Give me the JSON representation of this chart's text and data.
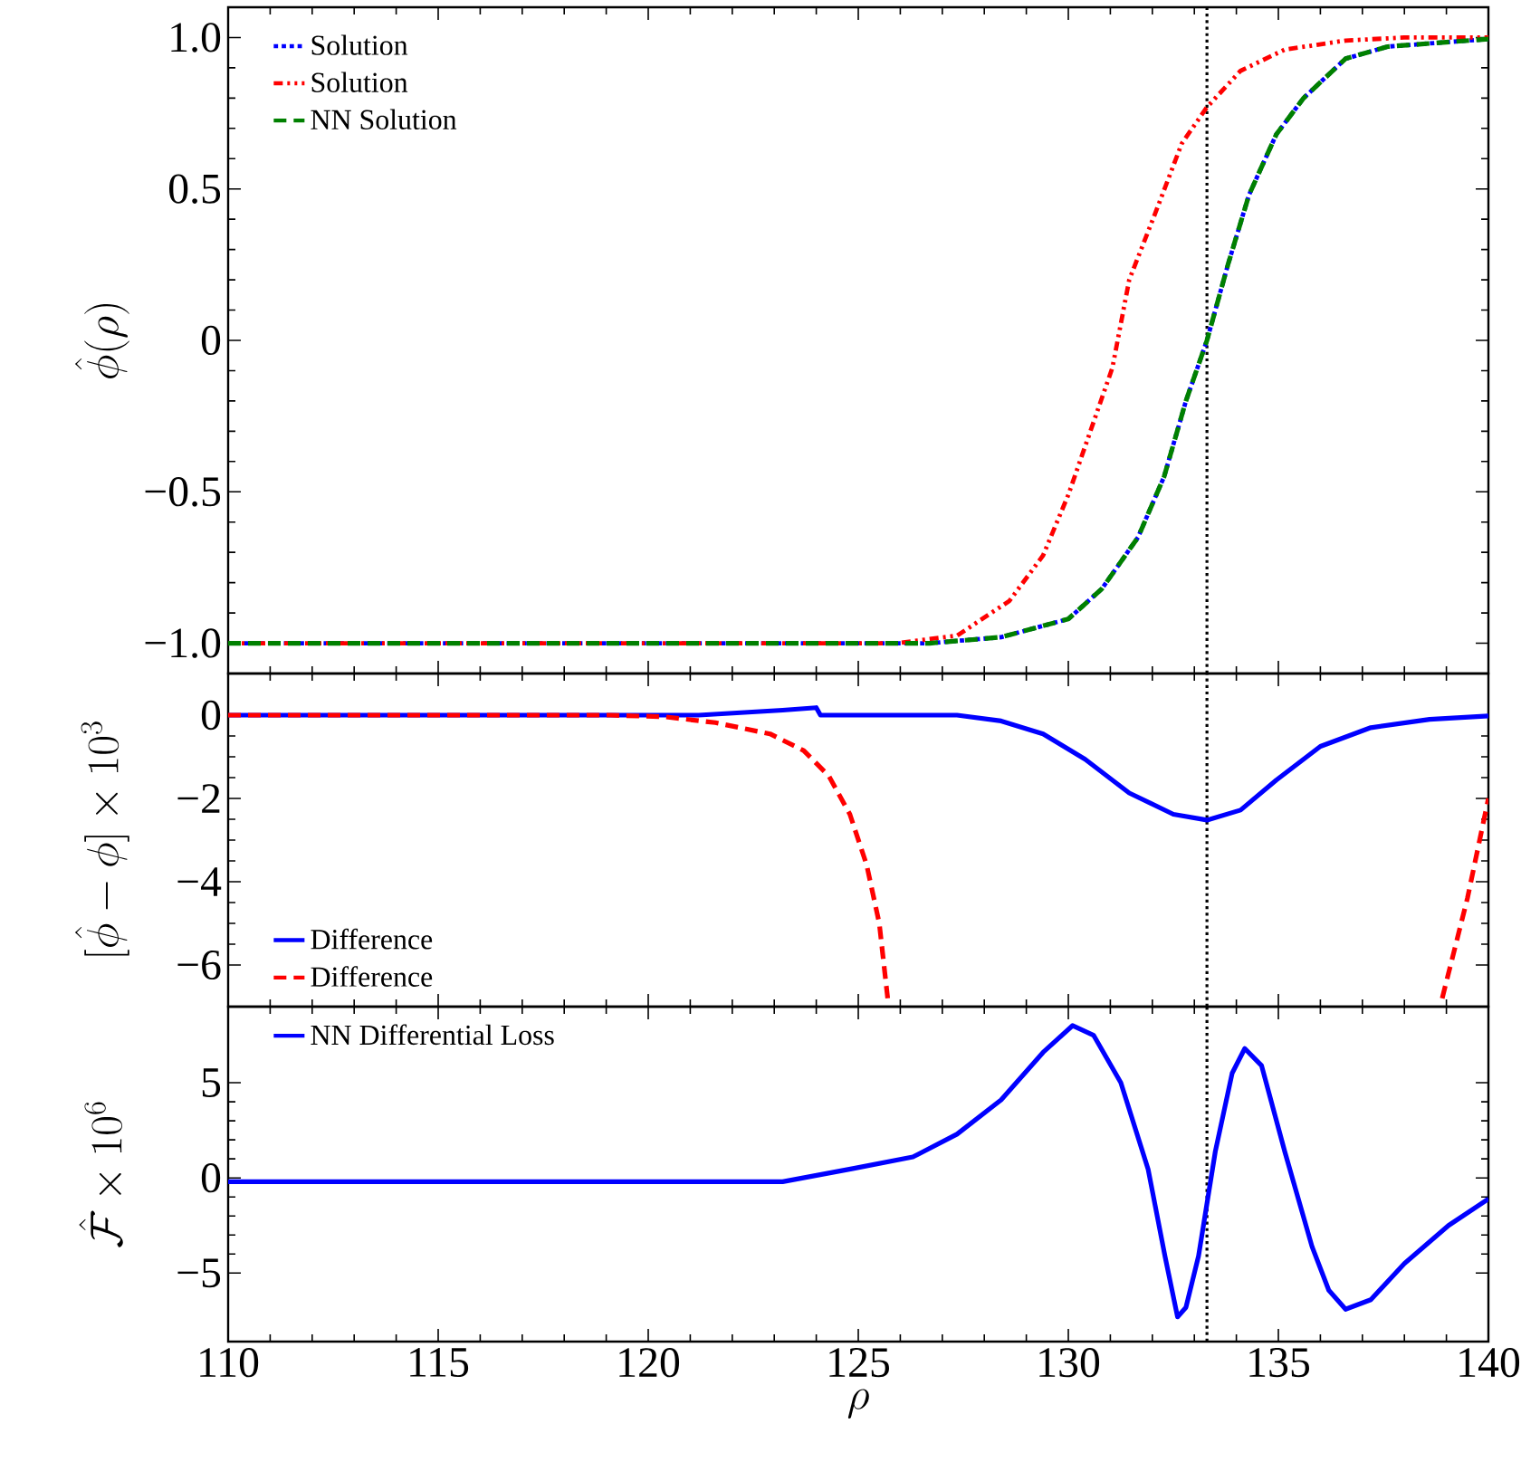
{
  "chart_data": [
    {
      "type": "line",
      "ylabel": "\\hat{\\phi}(\\rho)",
      "xlim": [
        110,
        140
      ],
      "ylim": [
        -1.1,
        1.1
      ],
      "xticks": [
        110,
        115,
        120,
        125,
        130,
        135,
        140
      ],
      "yticks": [
        {
          "value": -1,
          "label": "−1.0"
        },
        {
          "value": -0.5,
          "label": "−0.5"
        },
        0,
        {
          "value": 0.5,
          "label": "0.5"
        },
        {
          "value": 1,
          "label": "1.0"
        }
      ],
      "tick_labels": "y",
      "legend": "top left",
      "ref_lines": [
        {
          "axis": "x",
          "value": 133.3,
          "color": "#000000",
          "line_style": "dotted"
        }
      ],
      "series": [
        {
          "name": "Solution",
          "color": "#0000ff",
          "line_style": "dotted",
          "x": [
            110,
            126.7,
            128.4,
            130,
            130.8,
            131.66,
            132.28,
            132.8,
            133.3,
            133.8,
            134.3,
            134.95,
            135.6,
            136.6,
            137.6,
            140
          ],
          "values": [
            -1,
            -1,
            -0.98,
            -0.92,
            -0.82,
            -0.65,
            -0.45,
            -0.2,
            0,
            0.25,
            0.48,
            0.68,
            0.8,
            0.93,
            0.97,
            0.995
          ]
        },
        {
          "name": "Solution",
          "color": "#ff0000",
          "line_style": "dashdotdot",
          "x": [
            110,
            125.9,
            127.35,
            128.6,
            129.4,
            130,
            130.5,
            131.05,
            131.45,
            132.07,
            132.7,
            133.3,
            134.1,
            135.15,
            136.6,
            138,
            140
          ],
          "values": [
            -1,
            -1,
            -0.975,
            -0.86,
            -0.71,
            -0.51,
            -0.31,
            -0.09,
            0.2,
            0.42,
            0.65,
            0.77,
            0.89,
            0.96,
            0.99,
            1,
            1
          ]
        },
        {
          "name": "NN Solution",
          "color": "#008000",
          "line_style": "dashed",
          "x": [
            110,
            126.7,
            128.4,
            130,
            130.8,
            131.66,
            132.28,
            132.8,
            133.3,
            133.8,
            134.3,
            134.95,
            135.6,
            136.6,
            137.6,
            140
          ],
          "values": [
            -1,
            -1,
            -0.98,
            -0.92,
            -0.82,
            -0.65,
            -0.45,
            -0.2,
            0,
            0.25,
            0.48,
            0.68,
            0.8,
            0.93,
            0.97,
            0.995
          ]
        }
      ]
    },
    {
      "type": "line",
      "ylabel": "[\\hat{\\phi}-\\phi]\\times 10^3",
      "xlim": [
        110,
        140
      ],
      "ylim": [
        -7,
        1
      ],
      "xticks": [
        110,
        115,
        120,
        125,
        130,
        135,
        140
      ],
      "yticks": [
        {
          "value": -6,
          "label": "−6"
        },
        {
          "value": -4,
          "label": "−4"
        },
        {
          "value": -2,
          "label": "−2"
        },
        0
      ],
      "tick_labels": "y",
      "legend": "bottom left",
      "ref_lines": [
        {
          "axis": "x",
          "value": 133.3,
          "color": "#000000",
          "line_style": "dotted"
        }
      ],
      "series": [
        {
          "name": "Difference",
          "color": "#0000ff",
          "line_style": "solid",
          "x": [
            110,
            121.2,
            123.2,
            124.0,
            124.1,
            127.35,
            128.4,
            129.4,
            130.4,
            131.45,
            132.5,
            133.3,
            134.1,
            134.95,
            136.0,
            137.2,
            138.6,
            140
          ],
          "values": [
            0,
            0,
            0.12,
            0.18,
            0,
            0,
            -0.14,
            -0.45,
            -1.06,
            -1.87,
            -2.38,
            -2.52,
            -2.28,
            -1.56,
            -0.75,
            -0.3,
            -0.1,
            -0.02
          ]
        },
        {
          "name": "Difference",
          "color": "#ff0000",
          "line_style": "dashed",
          "x": [
            110,
            119.1,
            120.4,
            121.6,
            122.9,
            123.7,
            124.3,
            124.8,
            125.2,
            125.5,
            125.7,
            132,
            138.9,
            139.5,
            140
          ],
          "values": [
            0,
            0,
            -0.04,
            -0.18,
            -0.45,
            -0.85,
            -1.46,
            -2.38,
            -3.6,
            -5.0,
            -6.8,
            null,
            -6.8,
            -4.4,
            -2.0
          ]
        }
      ]
    },
    {
      "type": "line",
      "ylabel": "\\hat{\\mathcal{F}}\\times 10^6",
      "xlabel": "\\rho",
      "xlim": [
        110,
        140
      ],
      "ylim": [
        -8.6,
        9
      ],
      "xticks": [
        110,
        115,
        120,
        125,
        130,
        135,
        140
      ],
      "yticks": [
        {
          "value": -5,
          "label": "−5"
        },
        0,
        5
      ],
      "legend": "top left",
      "ref_lines": [
        {
          "axis": "x",
          "value": 133.3,
          "color": "#000000",
          "line_style": "dotted"
        }
      ],
      "series": [
        {
          "name": "NN Differential Loss",
          "color": "#0000ff",
          "line_style": "solid",
          "x": [
            110,
            123.2,
            124.9,
            126.3,
            127.35,
            128.4,
            129.4,
            130.1,
            130.6,
            131.25,
            131.9,
            132.3,
            132.6,
            132.8,
            133.1,
            133.5,
            133.9,
            134.2,
            134.6,
            135.15,
            135.8,
            136.2,
            136.6,
            137.2,
            138,
            139.05,
            140
          ],
          "values": [
            -0.2,
            -0.2,
            0.5,
            1.1,
            2.3,
            4.1,
            6.6,
            8.0,
            7.5,
            5.0,
            0.45,
            -4.1,
            -7.3,
            -6.8,
            -4.1,
            1.4,
            5.5,
            6.8,
            5.9,
            1.4,
            -3.6,
            -5.9,
            -6.9,
            -6.4,
            -4.5,
            -2.5,
            -1.1
          ]
        }
      ]
    }
  ]
}
